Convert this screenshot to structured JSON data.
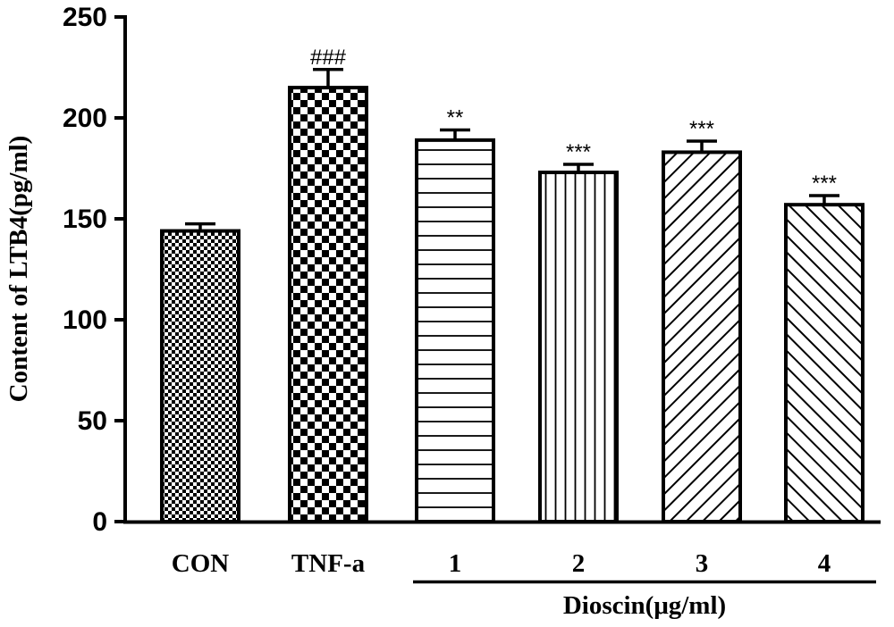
{
  "chart_data": {
    "type": "bar",
    "title": "",
    "xlabel": "",
    "ylabel": "Content of LTB4(pg/ml)",
    "ylim": [
      0,
      250
    ],
    "yticks": [
      "0",
      "50",
      "100",
      "150",
      "200",
      "250"
    ],
    "categories": [
      "CON",
      "TNF-a",
      "1",
      "2",
      "3",
      "4"
    ],
    "values": [
      144,
      215,
      189,
      173,
      183,
      157
    ],
    "errors": [
      3.5,
      9,
      5,
      4,
      5.5,
      4.5
    ],
    "significance": [
      "",
      "###",
      "**",
      "***",
      "***",
      "***"
    ],
    "patterns": [
      "fine-check",
      "coarse-check",
      "horizontal-lines",
      "vertical-lines",
      "diagonal-lines",
      "diagonal-lines-reverse"
    ],
    "group_label": "Dioscin(μg/ml)",
    "group_members": [
      "1",
      "2",
      "3",
      "4"
    ],
    "grid": false
  }
}
